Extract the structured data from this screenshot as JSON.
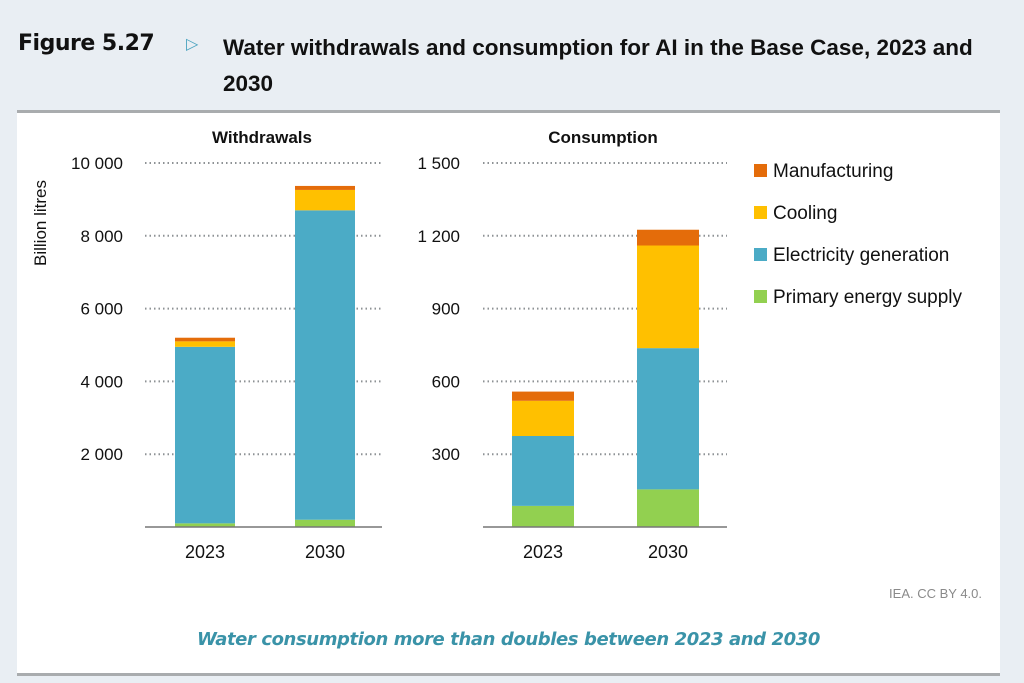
{
  "figure": {
    "number": "Figure 5.27",
    "arrow_icon": "triangle-right-icon",
    "title": "Water withdrawals and consumption for AI in the Base Case, 2023 and 2030",
    "caption": "Water consumption more than doubles between 2023 and 2030",
    "credit": "IEA. CC BY 4.0."
  },
  "chart_data": [
    {
      "type": "bar",
      "stacked": true,
      "title": "Withdrawals",
      "ylabel": "Billion litres",
      "xlabel": "",
      "categories": [
        "2023",
        "2030"
      ],
      "ylim": [
        0,
        10000
      ],
      "yticks": [
        2000,
        4000,
        6000,
        8000,
        10000
      ],
      "ytick_labels": [
        "2 000",
        "4 000",
        "6 000",
        "8 000",
        "10 000"
      ],
      "grid": true,
      "series": [
        {
          "name": "Primary energy supply",
          "color": "#92d050",
          "values": [
            100,
            200
          ]
        },
        {
          "name": "Electricity generation",
          "color": "#4babc6",
          "values": [
            4850,
            8500
          ]
        },
        {
          "name": "Cooling",
          "color": "#ffc000",
          "values": [
            150,
            560
          ]
        },
        {
          "name": "Manufacturing",
          "color": "#e46c0a",
          "values": [
            100,
            110
          ]
        }
      ]
    },
    {
      "type": "bar",
      "stacked": true,
      "title": "Consumption",
      "ylabel": "",
      "xlabel": "",
      "categories": [
        "2023",
        "2030"
      ],
      "ylim": [
        0,
        1500
      ],
      "yticks": [
        300,
        600,
        900,
        1200,
        1500
      ],
      "ytick_labels": [
        "300",
        "600",
        "900",
        "1 200",
        "1 500"
      ],
      "grid": true,
      "series": [
        {
          "name": "Primary energy supply",
          "color": "#92d050",
          "values": [
            87,
            155
          ]
        },
        {
          "name": "Electricity generation",
          "color": "#4babc6",
          "values": [
            288,
            582
          ]
        },
        {
          "name": "Cooling",
          "color": "#ffc000",
          "values": [
            145,
            423
          ]
        },
        {
          "name": "Manufacturing",
          "color": "#e46c0a",
          "values": [
            38,
            65
          ]
        }
      ]
    }
  ],
  "legend": {
    "placement": "right",
    "items": [
      {
        "label": "Manufacturing",
        "color": "#e46c0a"
      },
      {
        "label": "Cooling",
        "color": "#ffc000"
      },
      {
        "label": "Electricity generation",
        "color": "#4babc6"
      },
      {
        "label": "Primary energy supply",
        "color": "#92d050"
      }
    ]
  }
}
